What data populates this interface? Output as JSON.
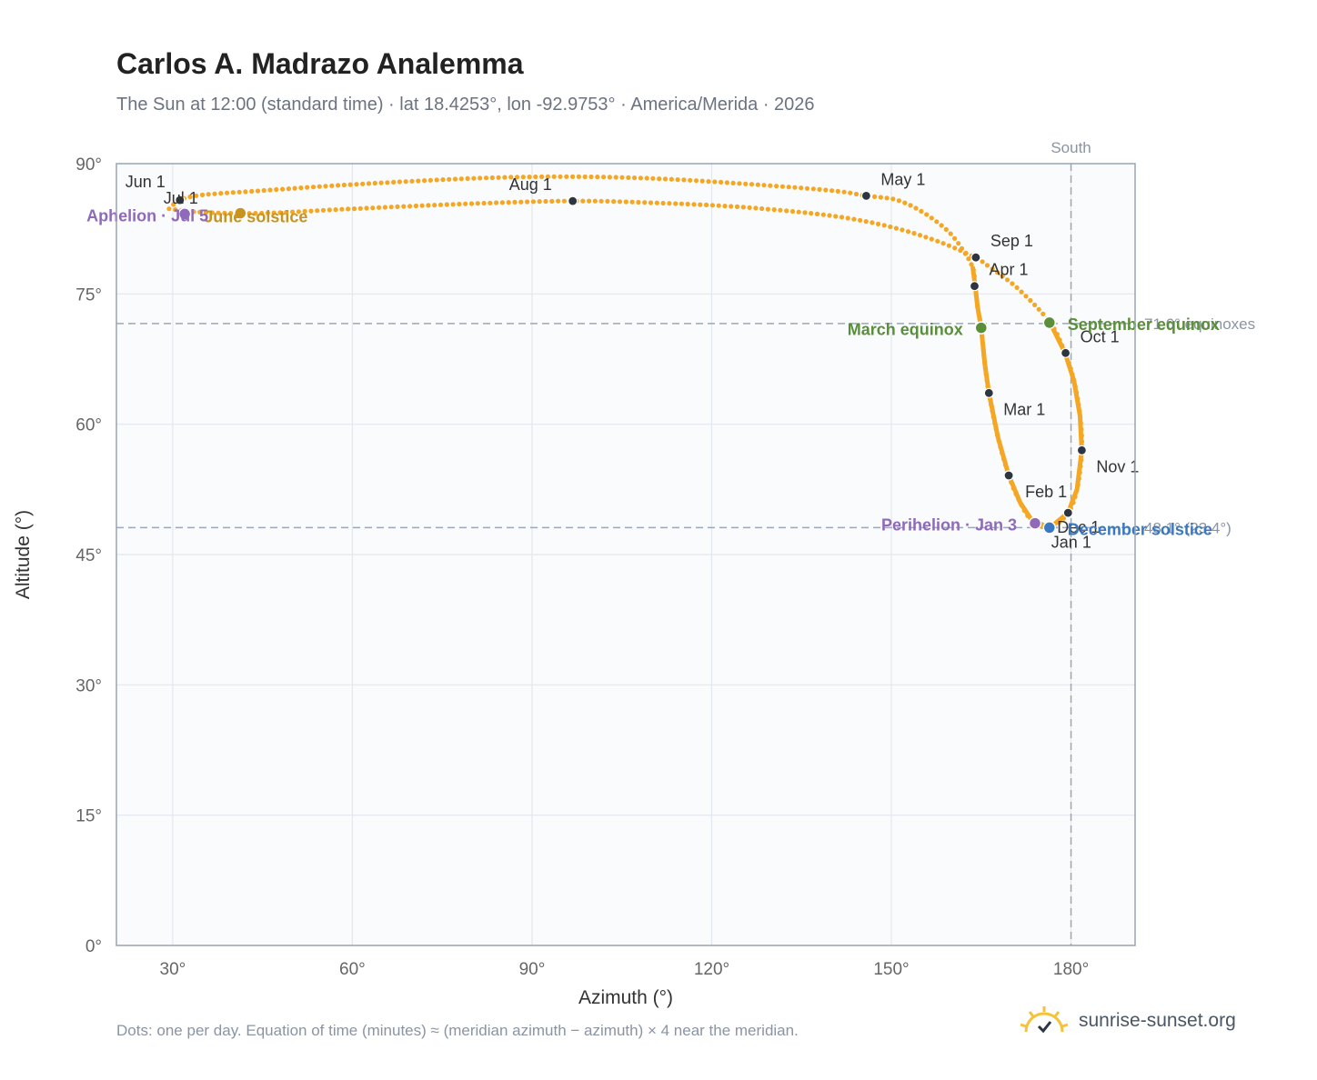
{
  "title": "Carlos A. Madrazo Analemma",
  "subtitle": "The Sun at 12:00 (standard time) · lat 18.4253°, lon -92.9753° · America/Merida · 2026",
  "footnote": "Dots: one per day. Equation of time (minutes) ≈ (meridian azimuth − azimuth) × 4 near the meridian.",
  "brand": {
    "name": "sunrise-sunset.org",
    "icon": "sun-check-icon"
  },
  "chart_data": {
    "type": "scatter",
    "xlabel": "Azimuth (°)",
    "ylabel": "Altitude (°)",
    "xlim": [
      20.6,
      190.7
    ],
    "ylim": [
      0,
      90
    ],
    "xticks": [
      30,
      60,
      90,
      120,
      150,
      180
    ],
    "yticks": [
      0,
      15,
      30,
      45,
      60,
      75,
      90
    ],
    "xtick_labels": [
      "30°",
      "60°",
      "90°",
      "120°",
      "150°",
      "180°"
    ],
    "ytick_labels": [
      "0°",
      "15°",
      "30°",
      "45°",
      "60°",
      "75°",
      "90°"
    ],
    "grid": true,
    "colors": {
      "path": "#f5a623",
      "month": "#2d3540",
      "equinox": "#5a8f3a",
      "solstice_june": "#c8941e",
      "solstice_december": "#3a78c2",
      "apsis": "#8e6ab8",
      "reference": "#9aa8b8",
      "grid": "#e3e8ee",
      "plot_bg": "#f9fbfd",
      "frame": "#9aa5b1"
    },
    "path_key": [
      {
        "az": 29.4,
        "alt": 84.8
      },
      {
        "az": 31.2,
        "alt": 85.8
      },
      {
        "az": 35.0,
        "alt": 86.4
      },
      {
        "az": 45.0,
        "alt": 86.9
      },
      {
        "az": 60.0,
        "alt": 87.6
      },
      {
        "az": 80.0,
        "alt": 88.3
      },
      {
        "az": 95.0,
        "alt": 88.5
      },
      {
        "az": 110.0,
        "alt": 88.3
      },
      {
        "az": 125.0,
        "alt": 87.7
      },
      {
        "az": 140.0,
        "alt": 86.9
      },
      {
        "az": 145.8,
        "alt": 86.3
      },
      {
        "az": 151.0,
        "alt": 85.8
      },
      {
        "az": 155.5,
        "alt": 84.3
      },
      {
        "az": 159.5,
        "alt": 82.2
      },
      {
        "az": 162.0,
        "alt": 80.0
      },
      {
        "az": 163.6,
        "alt": 78.0
      },
      {
        "az": 164.0,
        "alt": 75.9
      },
      {
        "az": 164.4,
        "alt": 73.5
      },
      {
        "az": 165.0,
        "alt": 71.1
      },
      {
        "az": 165.6,
        "alt": 67.0
      },
      {
        "az": 166.3,
        "alt": 63.6
      },
      {
        "az": 167.8,
        "alt": 58.5
      },
      {
        "az": 169.6,
        "alt": 54.1
      },
      {
        "az": 171.5,
        "alt": 51.0
      },
      {
        "az": 173.5,
        "alt": 48.9
      },
      {
        "az": 176.5,
        "alt": 48.1
      },
      {
        "az": 179.5,
        "alt": 49.8
      },
      {
        "az": 181.0,
        "alt": 52.5
      },
      {
        "az": 181.8,
        "alt": 57.0
      },
      {
        "az": 181.5,
        "alt": 61.0
      },
      {
        "az": 180.5,
        "alt": 65.0
      },
      {
        "az": 179.0,
        "alt": 68.2
      },
      {
        "az": 176.5,
        "alt": 71.7
      },
      {
        "az": 171.0,
        "alt": 75.7
      },
      {
        "az": 166.0,
        "alt": 78.3
      },
      {
        "az": 164.0,
        "alt": 79.2
      },
      {
        "az": 158.0,
        "alt": 81.0
      },
      {
        "az": 150.0,
        "alt": 82.7
      },
      {
        "az": 140.0,
        "alt": 84.0
      },
      {
        "az": 125.0,
        "alt": 85.0
      },
      {
        "az": 110.0,
        "alt": 85.5
      },
      {
        "az": 96.8,
        "alt": 85.7
      },
      {
        "az": 80.0,
        "alt": 85.4
      },
      {
        "az": 60.0,
        "alt": 84.8
      },
      {
        "az": 45.0,
        "alt": 84.3
      },
      {
        "az": 35.0,
        "alt": 84.4
      },
      {
        "az": 29.4,
        "alt": 84.8
      }
    ],
    "month_markers": [
      {
        "label": "Jan 1",
        "az": 176.4,
        "alt": 48.1
      },
      {
        "label": "Feb 1",
        "az": 169.6,
        "alt": 54.1
      },
      {
        "label": "Mar 1",
        "az": 166.3,
        "alt": 63.6
      },
      {
        "label": "Apr 1",
        "az": 163.9,
        "alt": 75.9
      },
      {
        "label": "May 1",
        "az": 145.8,
        "alt": 86.3
      },
      {
        "label": "Jun 1",
        "az": 31.2,
        "alt": 85.8
      },
      {
        "label": "Jul 1",
        "az": 31.2,
        "alt": 85.8
      },
      {
        "label": "Aug 1",
        "az": 96.8,
        "alt": 85.7
      },
      {
        "label": "Sep 1",
        "az": 164.1,
        "alt": 79.2
      },
      {
        "label": "Oct 1",
        "az": 179.1,
        "alt": 68.2
      },
      {
        "label": "Nov 1",
        "az": 181.8,
        "alt": 57.0
      },
      {
        "label": "Dec 1",
        "az": 179.5,
        "alt": 49.8
      }
    ],
    "events": [
      {
        "label": "March equinox",
        "az": 165.0,
        "alt": 71.1,
        "color_key": "equinox"
      },
      {
        "label": "September equinox",
        "az": 176.4,
        "alt": 71.7,
        "color_key": "equinox"
      },
      {
        "label": "June solstice",
        "az": 41.3,
        "alt": 84.3,
        "color_key": "solstice_june"
      },
      {
        "label": "December solstice",
        "az": 176.4,
        "alt": 48.1,
        "color_key": "solstice_december"
      },
      {
        "label": "Aphelion · Jul 5",
        "az": 32.0,
        "alt": 84.2,
        "color_key": "apsis"
      },
      {
        "label": "Perihelion · Jan 3",
        "az": 174.0,
        "alt": 48.6,
        "color_key": "apsis"
      }
    ],
    "reference_lines": [
      {
        "orientation": "vertical",
        "value": 180,
        "label": "South"
      },
      {
        "orientation": "horizontal",
        "value": 71.6,
        "label": "71.6° equinoxes"
      },
      {
        "orientation": "horizontal",
        "value": 48.1,
        "label": "48.1° (23.4°)"
      }
    ]
  }
}
